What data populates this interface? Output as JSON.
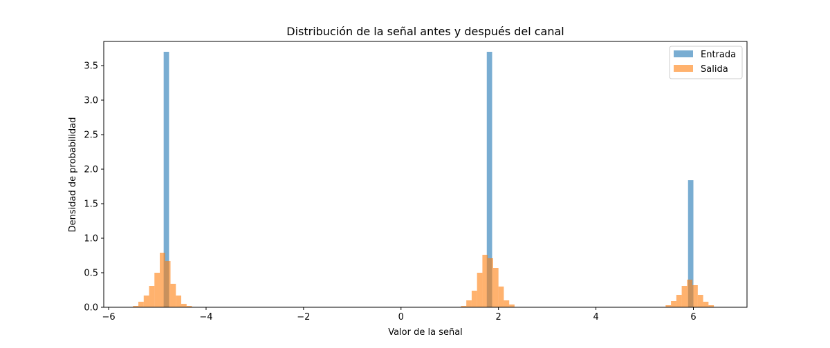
{
  "chart_data": {
    "type": "bar",
    "title": "Distribución de la señal antes y después del canal",
    "xlabel": "Valor de la señal",
    "ylabel": "Densidad de probabilidad",
    "xlim": [
      -6.1,
      7.1
    ],
    "ylim": [
      0,
      3.85
    ],
    "xticks": [
      -6,
      -4,
      -2,
      0,
      2,
      4,
      6
    ],
    "yticks": [
      0.0,
      0.5,
      1.0,
      1.5,
      2.0,
      2.5,
      3.0,
      3.5
    ],
    "xtick_labels": [
      "−6",
      "−4",
      "−2",
      "0",
      "2",
      "4",
      "6"
    ],
    "ytick_labels": [
      "0.0",
      "0.5",
      "1.0",
      "1.5",
      "2.0",
      "2.5",
      "3.0",
      "3.5"
    ],
    "grid": false,
    "legend_position": "top-right",
    "series": [
      {
        "name": "Entrada",
        "color": "#1f77b4",
        "opacity": 0.6,
        "bins": [
          {
            "x0": -4.87,
            "x1": -4.76,
            "y": 3.7
          },
          {
            "x0": 1.76,
            "x1": 1.87,
            "y": 3.7
          },
          {
            "x0": 5.89,
            "x1": 6.0,
            "y": 1.84
          }
        ]
      },
      {
        "name": "Salida",
        "color": "#ff7f0e",
        "opacity": 0.6,
        "bins": [
          {
            "x0": -5.6,
            "x1": -5.5,
            "y": 0.005
          },
          {
            "x0": -5.5,
            "x1": -5.39,
            "y": 0.02
          },
          {
            "x0": -5.39,
            "x1": -5.28,
            "y": 0.08
          },
          {
            "x0": -5.28,
            "x1": -5.17,
            "y": 0.17
          },
          {
            "x0": -5.17,
            "x1": -5.06,
            "y": 0.31
          },
          {
            "x0": -5.06,
            "x1": -4.95,
            "y": 0.5
          },
          {
            "x0": -4.95,
            "x1": -4.84,
            "y": 0.79
          },
          {
            "x0": -4.84,
            "x1": -4.73,
            "y": 0.67
          },
          {
            "x0": -4.73,
            "x1": -4.62,
            "y": 0.34
          },
          {
            "x0": -4.62,
            "x1": -4.51,
            "y": 0.17
          },
          {
            "x0": -4.51,
            "x1": -4.4,
            "y": 0.05
          },
          {
            "x0": -4.4,
            "x1": -4.29,
            "y": 0.02
          },
          {
            "x0": -4.29,
            "x1": -4.18,
            "y": 0.005
          },
          {
            "x0": 1.23,
            "x1": 1.34,
            "y": 0.02
          },
          {
            "x0": 1.34,
            "x1": 1.45,
            "y": 0.1
          },
          {
            "x0": 1.45,
            "x1": 1.56,
            "y": 0.24
          },
          {
            "x0": 1.56,
            "x1": 1.67,
            "y": 0.5
          },
          {
            "x0": 1.67,
            "x1": 1.78,
            "y": 0.76
          },
          {
            "x0": 1.78,
            "x1": 1.89,
            "y": 0.71
          },
          {
            "x0": 1.89,
            "x1": 2.0,
            "y": 0.57
          },
          {
            "x0": 2.0,
            "x1": 2.11,
            "y": 0.3
          },
          {
            "x0": 2.11,
            "x1": 2.22,
            "y": 0.1
          },
          {
            "x0": 2.22,
            "x1": 2.33,
            "y": 0.04
          },
          {
            "x0": 5.43,
            "x1": 5.54,
            "y": 0.03
          },
          {
            "x0": 5.54,
            "x1": 5.65,
            "y": 0.09
          },
          {
            "x0": 5.65,
            "x1": 5.76,
            "y": 0.18
          },
          {
            "x0": 5.76,
            "x1": 5.87,
            "y": 0.31
          },
          {
            "x0": 5.87,
            "x1": 5.98,
            "y": 0.4
          },
          {
            "x0": 5.98,
            "x1": 6.09,
            "y": 0.32
          },
          {
            "x0": 6.09,
            "x1": 6.2,
            "y": 0.18
          },
          {
            "x0": 6.2,
            "x1": 6.31,
            "y": 0.08
          },
          {
            "x0": 6.31,
            "x1": 6.42,
            "y": 0.03
          }
        ]
      }
    ]
  }
}
